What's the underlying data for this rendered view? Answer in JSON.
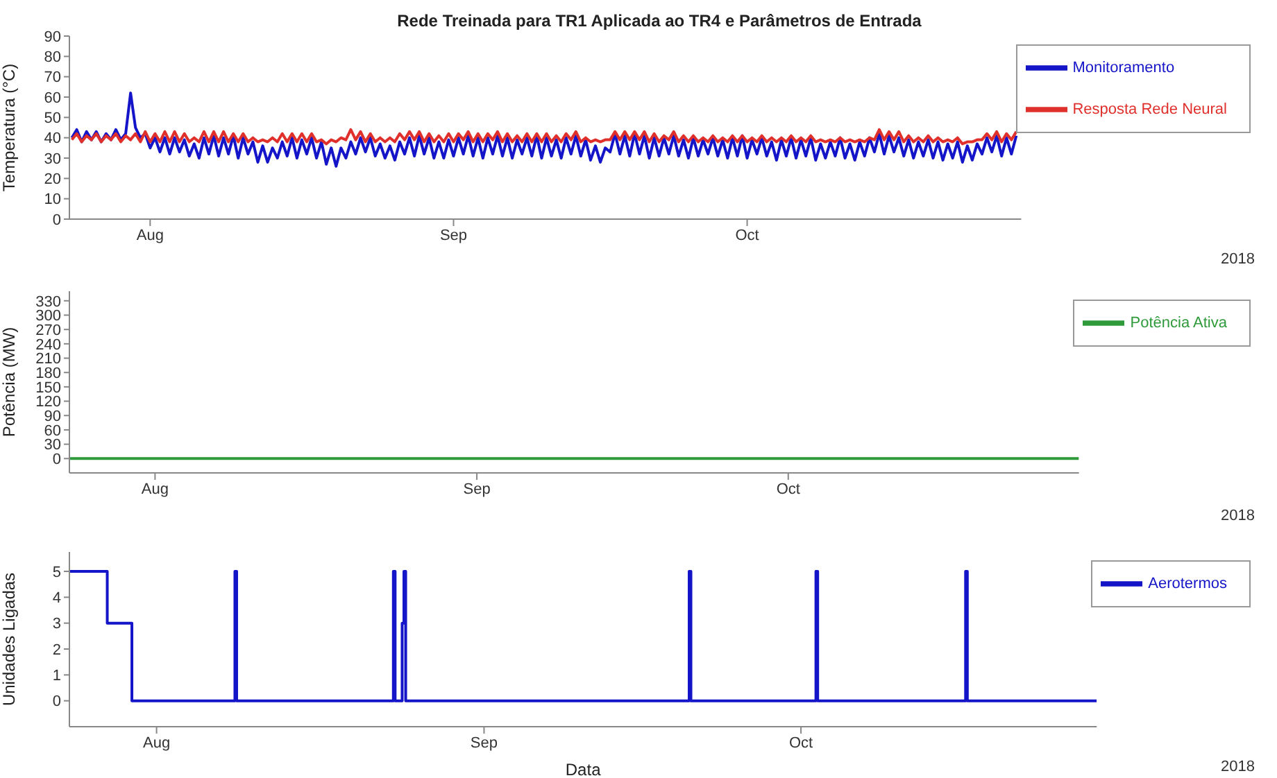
{
  "chart_data": [
    {
      "type": "line",
      "title": "Rede Treinada para TR1 Aplicada ao TR4 e Parâmetros de Entrada",
      "ylabel": "Temperatura (°C)",
      "annotations": [
        "2018"
      ],
      "legend": "top right",
      "xlim": [
        "2018-07-23T18:00",
        "2018-10-29T00:00"
      ],
      "xticks": [
        {
          "value": "2018-08-01",
          "label": "Aug"
        },
        {
          "value": "2018-09-01",
          "label": "Sep"
        },
        {
          "value": "2018-10-01",
          "label": "Oct"
        }
      ],
      "ylim": [
        0,
        90
      ],
      "yticks": [
        0,
        10,
        20,
        30,
        40,
        50,
        60,
        70,
        80,
        90
      ],
      "x": [
        "2018-07-24T00:00",
        "2018-07-24T12:00",
        "2018-07-25T00:00",
        "2018-07-25T12:00",
        "2018-07-26T00:00",
        "2018-07-26T12:00",
        "2018-07-27T00:00",
        "2018-07-27T12:00",
        "2018-07-28T00:00",
        "2018-07-28T12:00",
        "2018-07-29T00:00",
        "2018-07-29T12:00",
        "2018-07-30T00:00",
        "2018-07-30T12:00",
        "2018-07-31T00:00",
        "2018-07-31T12:00",
        "2018-08-01T00:00",
        "2018-08-01T12:00",
        "2018-08-02T00:00",
        "2018-08-02T12:00",
        "2018-08-03T00:00",
        "2018-08-03T12:00",
        "2018-08-04T00:00",
        "2018-08-04T12:00",
        "2018-08-05T00:00",
        "2018-08-05T12:00",
        "2018-08-06T00:00",
        "2018-08-06T12:00",
        "2018-08-07T00:00",
        "2018-08-07T12:00",
        "2018-08-08T00:00",
        "2018-08-08T12:00",
        "2018-08-09T00:00",
        "2018-08-09T12:00",
        "2018-08-10T00:00",
        "2018-08-10T12:00",
        "2018-08-11T00:00",
        "2018-08-11T12:00",
        "2018-08-12T00:00",
        "2018-08-12T12:00",
        "2018-08-13T00:00",
        "2018-08-13T12:00",
        "2018-08-14T00:00",
        "2018-08-14T12:00",
        "2018-08-15T00:00",
        "2018-08-15T12:00",
        "2018-08-16T00:00",
        "2018-08-16T12:00",
        "2018-08-17T00:00",
        "2018-08-17T12:00",
        "2018-08-18T00:00",
        "2018-08-18T12:00",
        "2018-08-19T00:00",
        "2018-08-19T12:00",
        "2018-08-20T00:00",
        "2018-08-20T12:00",
        "2018-08-21T00:00",
        "2018-08-21T12:00",
        "2018-08-22T00:00",
        "2018-08-22T12:00",
        "2018-08-23T00:00",
        "2018-08-23T12:00",
        "2018-08-24T00:00",
        "2018-08-24T12:00",
        "2018-08-25T00:00",
        "2018-08-25T12:00",
        "2018-08-26T00:00",
        "2018-08-26T12:00",
        "2018-08-27T00:00",
        "2018-08-27T12:00",
        "2018-08-28T00:00",
        "2018-08-28T12:00",
        "2018-08-29T00:00",
        "2018-08-29T12:00",
        "2018-08-30T00:00",
        "2018-08-30T12:00",
        "2018-08-31T00:00",
        "2018-08-31T12:00",
        "2018-09-01T00:00",
        "2018-09-01T12:00",
        "2018-09-02T00:00",
        "2018-09-02T12:00",
        "2018-09-03T00:00",
        "2018-09-03T12:00",
        "2018-09-04T00:00",
        "2018-09-04T12:00",
        "2018-09-05T00:00",
        "2018-09-05T12:00",
        "2018-09-06T00:00",
        "2018-09-06T12:00",
        "2018-09-07T00:00",
        "2018-09-07T12:00",
        "2018-09-08T00:00",
        "2018-09-08T12:00",
        "2018-09-09T00:00",
        "2018-09-09T12:00",
        "2018-09-10T00:00",
        "2018-09-10T12:00",
        "2018-09-11T00:00",
        "2018-09-11T12:00",
        "2018-09-12T00:00",
        "2018-09-12T12:00",
        "2018-09-13T00:00",
        "2018-09-13T12:00",
        "2018-09-14T00:00",
        "2018-09-14T12:00",
        "2018-09-15T00:00",
        "2018-09-15T12:00",
        "2018-09-16T00:00",
        "2018-09-16T12:00",
        "2018-09-17T00:00",
        "2018-09-17T12:00",
        "2018-09-18T00:00",
        "2018-09-18T12:00",
        "2018-09-19T00:00",
        "2018-09-19T12:00",
        "2018-09-20T00:00",
        "2018-09-20T12:00",
        "2018-09-21T00:00",
        "2018-09-21T12:00",
        "2018-09-22T00:00",
        "2018-09-22T12:00",
        "2018-09-23T00:00",
        "2018-09-23T12:00",
        "2018-09-24T00:00",
        "2018-09-24T12:00",
        "2018-09-25T00:00",
        "2018-09-25T12:00",
        "2018-09-26T00:00",
        "2018-09-26T12:00",
        "2018-09-27T00:00",
        "2018-09-27T12:00",
        "2018-09-28T00:00",
        "2018-09-28T12:00",
        "2018-09-29T00:00",
        "2018-09-29T12:00",
        "2018-09-30T00:00",
        "2018-09-30T12:00",
        "2018-10-01T00:00",
        "2018-10-01T12:00",
        "2018-10-02T00:00",
        "2018-10-02T12:00",
        "2018-10-03T00:00",
        "2018-10-03T12:00",
        "2018-10-04T00:00",
        "2018-10-04T12:00",
        "2018-10-05T00:00",
        "2018-10-05T12:00",
        "2018-10-06T00:00",
        "2018-10-06T12:00",
        "2018-10-07T00:00",
        "2018-10-07T12:00",
        "2018-10-08T00:00",
        "2018-10-08T12:00",
        "2018-10-09T00:00",
        "2018-10-09T12:00",
        "2018-10-10T00:00",
        "2018-10-10T12:00",
        "2018-10-11T00:00",
        "2018-10-11T12:00",
        "2018-10-12T00:00",
        "2018-10-12T12:00",
        "2018-10-13T00:00",
        "2018-10-13T12:00",
        "2018-10-14T00:00",
        "2018-10-14T12:00",
        "2018-10-15T00:00",
        "2018-10-15T12:00",
        "2018-10-16T00:00",
        "2018-10-16T12:00",
        "2018-10-17T00:00",
        "2018-10-17T12:00",
        "2018-10-18T00:00",
        "2018-10-18T12:00",
        "2018-10-19T00:00",
        "2018-10-19T12:00",
        "2018-10-20T00:00",
        "2018-10-20T12:00",
        "2018-10-21T00:00",
        "2018-10-21T12:00",
        "2018-10-22T00:00",
        "2018-10-22T12:00",
        "2018-10-23T00:00",
        "2018-10-23T12:00",
        "2018-10-24T00:00",
        "2018-10-24T12:00",
        "2018-10-25T00:00",
        "2018-10-25T12:00",
        "2018-10-26T00:00",
        "2018-10-26T12:00",
        "2018-10-27T00:00",
        "2018-10-27T12:00",
        "2018-10-28T00:00",
        "2018-10-28T12:00"
      ],
      "series": [
        {
          "name": "Monitoramento",
          "color": "#1414c8",
          "values": [
            40,
            44,
            38,
            43,
            39,
            43,
            38,
            42,
            39,
            44,
            39,
            42,
            62,
            45,
            40,
            42,
            35,
            40,
            33,
            40,
            32,
            40,
            33,
            39,
            31,
            37,
            30,
            40,
            32,
            41,
            31,
            40,
            32,
            41,
            30,
            40,
            32,
            38,
            28,
            36,
            28,
            35,
            30,
            38,
            31,
            40,
            30,
            39,
            32,
            40,
            30,
            38,
            27,
            35,
            26,
            35,
            30,
            38,
            32,
            40,
            33,
            40,
            31,
            37,
            30,
            36,
            29,
            38,
            32,
            40,
            31,
            41,
            32,
            40,
            30,
            38,
            30,
            39,
            31,
            40,
            32,
            41,
            31,
            40,
            30,
            40,
            32,
            41,
            31,
            40,
            30,
            39,
            32,
            40,
            31,
            41,
            30,
            40,
            31,
            39,
            30,
            40,
            32,
            41,
            31,
            39,
            29,
            36,
            28,
            35,
            33,
            42,
            32,
            41,
            31,
            42,
            32,
            41,
            30,
            40,
            31,
            40,
            32,
            41,
            31,
            39,
            30,
            40,
            31,
            39,
            32,
            40,
            31,
            39,
            30,
            40,
            31,
            41,
            30,
            39,
            32,
            40,
            31,
            38,
            29,
            39,
            31,
            40,
            30,
            39,
            31,
            40,
            29,
            37,
            30,
            38,
            31,
            40,
            30,
            37,
            29,
            38,
            31,
            40,
            33,
            42,
            32,
            41,
            33,
            40,
            31,
            39,
            30,
            38,
            31,
            39,
            30,
            38,
            29,
            37,
            30,
            38,
            28,
            36,
            29,
            37,
            32,
            40,
            33,
            41,
            31,
            40,
            32,
            41
          ]
        },
        {
          "name": "Resposta Rede Neural",
          "color": "#e0302c",
          "values": [
            39,
            42,
            38,
            41,
            39,
            42,
            38,
            41,
            39,
            42,
            38,
            41,
            39,
            42,
            38,
            43,
            38,
            42,
            38,
            43,
            38,
            43,
            38,
            42,
            38,
            40,
            38,
            43,
            38,
            43,
            38,
            43,
            38,
            42,
            38,
            42,
            38,
            40,
            38,
            39,
            38,
            40,
            38,
            42,
            38,
            42,
            38,
            42,
            38,
            42,
            38,
            39,
            37,
            39,
            38,
            40,
            39,
            44,
            39,
            43,
            38,
            42,
            38,
            40,
            38,
            40,
            38,
            42,
            39,
            43,
            39,
            43,
            38,
            42,
            38,
            41,
            38,
            42,
            38,
            42,
            39,
            43,
            38,
            42,
            38,
            42,
            39,
            43,
            38,
            42,
            38,
            41,
            38,
            42,
            38,
            42,
            38,
            42,
            38,
            41,
            38,
            42,
            39,
            43,
            38,
            40,
            38,
            39,
            38,
            39,
            39,
            43,
            39,
            43,
            39,
            43,
            39,
            43,
            38,
            42,
            38,
            41,
            39,
            43,
            38,
            41,
            38,
            41,
            38,
            40,
            38,
            41,
            38,
            40,
            38,
            41,
            38,
            41,
            38,
            40,
            38,
            41,
            38,
            40,
            38,
            40,
            38,
            41,
            38,
            40,
            38,
            41,
            38,
            39,
            38,
            39,
            38,
            40,
            38,
            39,
            38,
            39,
            38,
            40,
            39,
            44,
            39,
            43,
            39,
            43,
            38,
            41,
            38,
            40,
            38,
            41,
            38,
            40,
            38,
            39,
            38,
            40,
            37,
            38,
            38,
            39,
            39,
            42,
            39,
            43,
            38,
            42,
            39,
            43
          ]
        }
      ]
    },
    {
      "type": "line",
      "ylabel": "Potência (MW)",
      "annotations": [
        "2018"
      ],
      "legend": "top right",
      "xlim": [
        "2018-07-23T18:00",
        "2018-10-29T00:00"
      ],
      "xticks": [
        {
          "value": "2018-08-01",
          "label": "Aug"
        },
        {
          "value": "2018-09-01",
          "label": "Sep"
        },
        {
          "value": "2018-10-01",
          "label": "Oct"
        }
      ],
      "ylim": [
        -30,
        350
      ],
      "yticks": [
        0,
        30,
        60,
        90,
        120,
        150,
        180,
        210,
        240,
        270,
        300,
        330
      ],
      "x": [
        "2018-07-23T18:00",
        "2018-10-29T00:00"
      ],
      "series": [
        {
          "name": "Potência Ativa",
          "color": "#2e9a3a",
          "values": [
            0,
            0
          ]
        }
      ]
    },
    {
      "type": "step",
      "xlabel": "Data",
      "ylabel": "Unidades Ligadas",
      "annotations": [
        "2018"
      ],
      "legend": "top right",
      "xlim": [
        "2018-07-23T18:00",
        "2018-10-29T00:00"
      ],
      "xticks": [
        {
          "value": "2018-08-01",
          "label": "Aug"
        },
        {
          "value": "2018-09-01",
          "label": "Sep"
        },
        {
          "value": "2018-10-01",
          "label": "Oct"
        }
      ],
      "ylim": [
        -1,
        5.75
      ],
      "yticks": [
        0,
        1,
        2,
        3,
        4,
        5
      ],
      "x": [
        "2018-07-23T18:00",
        "2018-07-27T08:00",
        "2018-07-29T16:00",
        "2018-08-08T10:00",
        "2018-08-08T14:00",
        "2018-08-23T10:00",
        "2018-08-23T14:00",
        "2018-08-24T06:00",
        "2018-08-24T10:00",
        "2018-08-24T14:00",
        "2018-09-20T10:00",
        "2018-09-20T14:00",
        "2018-10-02T10:00",
        "2018-10-02T14:00",
        "2018-10-16T14:00",
        "2018-10-16T18:00",
        "2018-10-29T00:00"
      ],
      "series": [
        {
          "name": "Aerotermos",
          "color": "#1414c8",
          "values": [
            5,
            3,
            0,
            5,
            0,
            5,
            0,
            3,
            5,
            0,
            5,
            0,
            5,
            0,
            5,
            0,
            0
          ]
        }
      ]
    }
  ]
}
